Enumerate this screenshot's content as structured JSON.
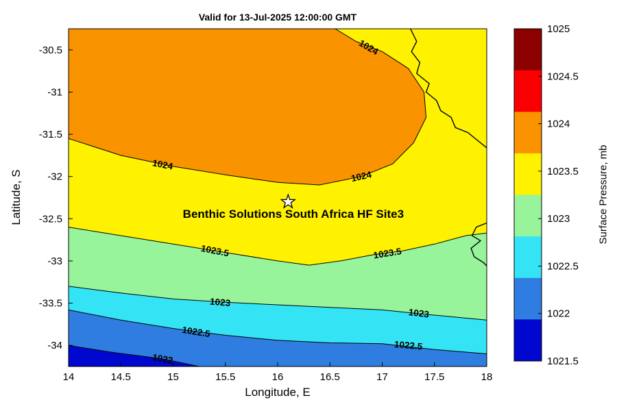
{
  "chart_data": {
    "type": "filled_contour",
    "title": "Valid for 13-Jul-2025 12:00:00 GMT",
    "xlabel": "Longitude, E",
    "ylabel": "Latitude, S",
    "x_range": [
      14,
      18
    ],
    "y_range": [
      -34.25,
      -30.25
    ],
    "x_ticks": [
      14,
      14.5,
      15,
      15.5,
      16,
      16.5,
      17,
      17.5,
      18
    ],
    "x_tick_labels": [
      "14",
      "14.5",
      "15",
      "15.5",
      "16",
      "16.5",
      "17",
      "17.5",
      "18"
    ],
    "y_ticks": [
      -30.5,
      -31,
      -31.5,
      -32,
      -32.5,
      -33,
      -33.5,
      -34
    ],
    "y_tick_labels": [
      "-30.5",
      "-31",
      "-31.5",
      "-32",
      "-32.5",
      "-33",
      "-33.5",
      "-34"
    ],
    "grid": false,
    "base_band": {
      "range": [
        1023.5,
        1024
      ],
      "color": "#FFF200"
    },
    "bands": [
      {
        "range": [
          1021.5,
          1022
        ],
        "color": "#0008D0"
      },
      {
        "range": [
          1022,
          1022.5
        ],
        "color": "#2F7DE0"
      },
      {
        "range": [
          1022.5,
          1023
        ],
        "color": "#35E4F4"
      },
      {
        "range": [
          1023,
          1023.5
        ],
        "color": "#97F49B"
      },
      {
        "range": [
          1023.5,
          1024
        ],
        "color": "#FFF200"
      },
      {
        "range": [
          1024,
          1024.5
        ],
        "color": "#FA9300"
      }
    ],
    "contours": [
      {
        "level": "1024",
        "fill_side": "above",
        "fill_color": "#FA9300",
        "close_corners": [
          [
            14,
            -30.25
          ]
        ],
        "points": [
          [
            14,
            -31.55
          ],
          [
            14.5,
            -31.75
          ],
          [
            15,
            -31.88
          ],
          [
            15.5,
            -31.98
          ],
          [
            16,
            -32.07
          ],
          [
            16.4,
            -32.1
          ],
          [
            16.8,
            -32.0
          ],
          [
            17.1,
            -31.85
          ],
          [
            17.3,
            -31.6
          ],
          [
            17.42,
            -31.3
          ],
          [
            17.4,
            -31.0
          ],
          [
            17.25,
            -30.72
          ],
          [
            17.0,
            -30.52
          ],
          [
            16.75,
            -30.4
          ],
          [
            16.55,
            -30.25
          ]
        ],
        "labels": [
          {
            "x": 14.9,
            "y": -31.86,
            "rot": 11
          },
          {
            "x": 16.8,
            "y": -32.0,
            "rot": -12
          },
          {
            "x": 16.87,
            "y": -30.47,
            "rot": 30
          }
        ]
      },
      {
        "level": "1023.5",
        "fill_side": "below",
        "fill_color": "#97F49B",
        "close_corners": [
          [
            18,
            -34.25
          ],
          [
            14,
            -34.25
          ]
        ],
        "points": [
          [
            14,
            -32.6
          ],
          [
            14.5,
            -32.7
          ],
          [
            15,
            -32.8
          ],
          [
            15.5,
            -32.9
          ],
          [
            16,
            -33.0
          ],
          [
            16.3,
            -33.05
          ],
          [
            16.6,
            -33.0
          ],
          [
            16.9,
            -32.93
          ],
          [
            17.2,
            -32.88
          ],
          [
            17.5,
            -32.8
          ],
          [
            17.8,
            -32.7
          ],
          [
            18,
            -32.67
          ]
        ],
        "labels": [
          {
            "x": 15.4,
            "y": -32.88,
            "rot": 11
          },
          {
            "x": 17.05,
            "y": -32.91,
            "rot": -9
          }
        ]
      },
      {
        "level": "1023",
        "fill_side": "below",
        "fill_color": "#35E4F4",
        "close_corners": [
          [
            18,
            -34.25
          ],
          [
            14,
            -34.25
          ]
        ],
        "points": [
          [
            14,
            -33.3
          ],
          [
            14.5,
            -33.38
          ],
          [
            15,
            -33.45
          ],
          [
            15.5,
            -33.49
          ],
          [
            16,
            -33.52
          ],
          [
            16.5,
            -33.55
          ],
          [
            17,
            -33.58
          ],
          [
            17.4,
            -33.63
          ],
          [
            18,
            -33.7
          ]
        ],
        "labels": [
          {
            "x": 15.45,
            "y": -33.49,
            "rot": 5
          },
          {
            "x": 17.35,
            "y": -33.62,
            "rot": 7
          }
        ]
      },
      {
        "level": "1022.5",
        "fill_side": "below",
        "fill_color": "#2F7DE0",
        "close_corners": [
          [
            18,
            -34.25
          ],
          [
            14,
            -34.25
          ]
        ],
        "points": [
          [
            14,
            -33.58
          ],
          [
            14.5,
            -33.7
          ],
          [
            15,
            -33.8
          ],
          [
            15.5,
            -33.88
          ],
          [
            16,
            -33.94
          ],
          [
            16.5,
            -33.97
          ],
          [
            17,
            -33.98
          ],
          [
            17.5,
            -34.05
          ],
          [
            18,
            -34.1
          ]
        ],
        "labels": [
          {
            "x": 15.22,
            "y": -33.84,
            "rot": 9
          },
          {
            "x": 17.25,
            "y": -34.0,
            "rot": 5
          }
        ]
      },
      {
        "level": "1022",
        "fill_side": "below",
        "fill_color": "#0008D0",
        "close_corners": [
          [
            14,
            -34.25
          ]
        ],
        "points": [
          [
            14,
            -34.0
          ],
          [
            14.4,
            -34.08
          ],
          [
            14.9,
            -34.16
          ],
          [
            15.25,
            -34.25
          ]
        ],
        "labels": [
          {
            "x": 14.9,
            "y": -34.16,
            "rot": 10
          }
        ]
      }
    ],
    "coastlines": [
      [
        [
          17.27,
          -30.25
        ],
        [
          17.33,
          -30.4
        ],
        [
          17.28,
          -30.52
        ],
        [
          17.36,
          -30.65
        ],
        [
          17.33,
          -30.78
        ],
        [
          17.45,
          -30.9
        ],
        [
          17.42,
          -31.0
        ],
        [
          17.52,
          -31.1
        ],
        [
          17.56,
          -31.22
        ],
        [
          17.66,
          -31.3
        ],
        [
          17.7,
          -31.42
        ],
        [
          17.82,
          -31.48
        ],
        [
          17.9,
          -31.56
        ],
        [
          18,
          -31.66
        ]
      ],
      [
        [
          18,
          -32.55
        ],
        [
          17.9,
          -32.6
        ],
        [
          17.86,
          -32.7
        ],
        [
          17.94,
          -32.76
        ],
        [
          17.85,
          -32.85
        ],
        [
          17.88,
          -32.95
        ],
        [
          17.97,
          -33.02
        ],
        [
          18,
          -33.06
        ]
      ]
    ],
    "site_marker": {
      "lon": 16.1,
      "lat": -32.3,
      "symbol": "star",
      "label": "Benthic Solutions South Africa HF Site3",
      "label_lon": 16.15,
      "label_lat": -32.45
    },
    "colorbar": {
      "label": "Surface Pressure, mb",
      "tick_labels": [
        "1025",
        "1024.5",
        "1024",
        "1023.5",
        "1023",
        "1022.5",
        "1022",
        "1021.5"
      ],
      "colors_top_to_bottom": [
        "#8C0000",
        "#FB0000",
        "#FA9300",
        "#FFF200",
        "#97F49B",
        "#35E4F4",
        "#2F7DE0",
        "#0008D0"
      ]
    }
  }
}
